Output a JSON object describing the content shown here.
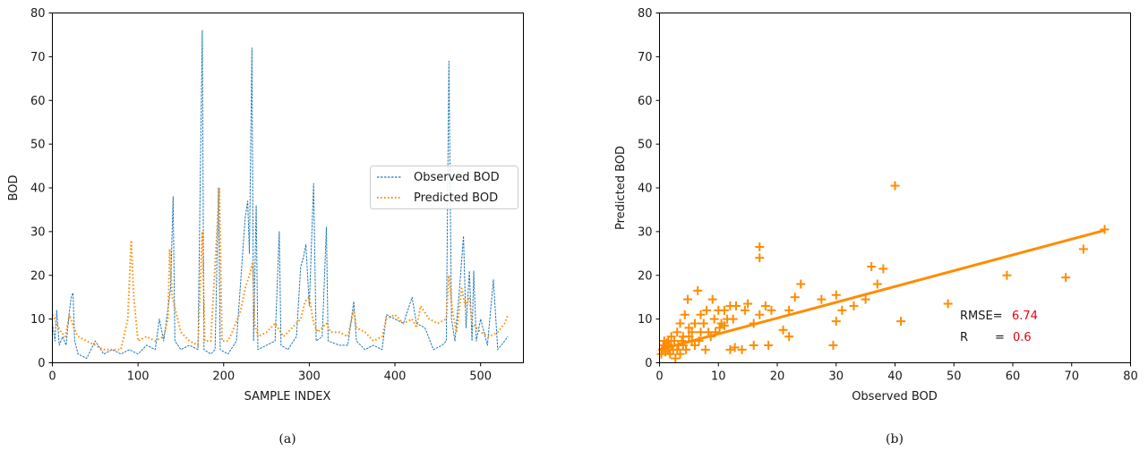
{
  "colors": {
    "observed": "#1f77b4",
    "predicted": "#ff8c00",
    "rmse_value": "#e8000b",
    "axis": "#000000"
  },
  "chart_data": [
    {
      "type": "line",
      "caption": "(a)",
      "xlabel": "SAMPLE INDEX",
      "ylabel": "BOD",
      "xlim": [
        0,
        550
      ],
      "ylim": [
        0,
        80
      ],
      "xticks": [
        "0",
        "100",
        "200",
        "300",
        "400",
        "500"
      ],
      "yticks": [
        "0",
        "10",
        "20",
        "30",
        "40",
        "50",
        "60",
        "70",
        "80"
      ],
      "legend_position": "center-right",
      "series": [
        {
          "name": "Observed BOD",
          "style": "dashed",
          "points": [
            [
              0,
              9
            ],
            [
              3,
              5
            ],
            [
              5,
              12
            ],
            [
              8,
              4
            ],
            [
              12,
              6
            ],
            [
              16,
              4
            ],
            [
              20,
              12
            ],
            [
              22,
              15
            ],
            [
              24,
              16
            ],
            [
              26,
              5
            ],
            [
              30,
              2
            ],
            [
              40,
              1
            ],
            [
              50,
              5
            ],
            [
              60,
              2
            ],
            [
              70,
              3
            ],
            [
              80,
              2
            ],
            [
              90,
              3
            ],
            [
              100,
              2
            ],
            [
              110,
              4
            ],
            [
              120,
              3
            ],
            [
              125,
              10
            ],
            [
              130,
              5
            ],
            [
              138,
              17
            ],
            [
              141,
              38
            ],
            [
              143,
              5
            ],
            [
              150,
              3
            ],
            [
              160,
              4
            ],
            [
              170,
              3
            ],
            [
              175,
              76
            ],
            [
              177,
              3
            ],
            [
              185,
              2
            ],
            [
              190,
              3
            ],
            [
              194,
              40
            ],
            [
              196,
              3
            ],
            [
              205,
              2
            ],
            [
              215,
              5
            ],
            [
              225,
              33
            ],
            [
              228,
              37
            ],
            [
              230,
              25
            ],
            [
              233,
              72
            ],
            [
              235,
              5
            ],
            [
              238,
              36
            ],
            [
              240,
              3
            ],
            [
              250,
              4
            ],
            [
              260,
              5
            ],
            [
              265,
              30
            ],
            [
              267,
              4
            ],
            [
              275,
              3
            ],
            [
              285,
              6
            ],
            [
              290,
              22
            ],
            [
              293,
              24
            ],
            [
              296,
              27
            ],
            [
              300,
              13
            ],
            [
              305,
              41
            ],
            [
              308,
              5
            ],
            [
              315,
              6
            ],
            [
              320,
              31
            ],
            [
              322,
              5
            ],
            [
              335,
              4
            ],
            [
              345,
              4
            ],
            [
              352,
              14
            ],
            [
              355,
              5
            ],
            [
              365,
              3
            ],
            [
              375,
              4
            ],
            [
              385,
              3
            ],
            [
              390,
              11
            ],
            [
              400,
              10
            ],
            [
              410,
              9
            ],
            [
              420,
              15
            ],
            [
              425,
              9
            ],
            [
              435,
              8
            ],
            [
              445,
              3
            ],
            [
              455,
              4
            ],
            [
              460,
              5
            ],
            [
              463,
              69
            ],
            [
              466,
              10
            ],
            [
              470,
              5
            ],
            [
              475,
              16
            ],
            [
              480,
              29
            ],
            [
              483,
              8
            ],
            [
              487,
              21
            ],
            [
              490,
              5
            ],
            [
              492,
              21
            ],
            [
              495,
              5
            ],
            [
              500,
              10
            ],
            [
              508,
              4
            ],
            [
              515,
              19
            ],
            [
              520,
              3
            ],
            [
              528,
              5
            ],
            [
              532,
              6
            ]
          ]
        },
        {
          "name": "Predicted BOD",
          "style": "dotted",
          "points": [
            [
              0,
              11
            ],
            [
              5,
              9
            ],
            [
              10,
              7
            ],
            [
              15,
              6
            ],
            [
              20,
              11
            ],
            [
              25,
              8
            ],
            [
              30,
              6
            ],
            [
              40,
              5
            ],
            [
              50,
              4
            ],
            [
              60,
              3
            ],
            [
              70,
              3
            ],
            [
              80,
              3
            ],
            [
              88,
              10
            ],
            [
              92,
              28
            ],
            [
              95,
              15
            ],
            [
              100,
              5
            ],
            [
              110,
              6
            ],
            [
              120,
              5
            ],
            [
              130,
              6
            ],
            [
              135,
              10
            ],
            [
              137,
              26
            ],
            [
              140,
              15
            ],
            [
              150,
              7
            ],
            [
              160,
              5
            ],
            [
              170,
              4
            ],
            [
              175,
              30
            ],
            [
              178,
              5
            ],
            [
              185,
              5
            ],
            [
              195,
              40
            ],
            [
              198,
              5
            ],
            [
              205,
              5
            ],
            [
              210,
              7
            ],
            [
              220,
              12
            ],
            [
              225,
              17
            ],
            [
              230,
              20
            ],
            [
              234,
              23
            ],
            [
              236,
              9
            ],
            [
              240,
              6
            ],
            [
              250,
              7
            ],
            [
              260,
              9
            ],
            [
              270,
              6
            ],
            [
              280,
              8
            ],
            [
              290,
              10
            ],
            [
              295,
              14
            ],
            [
              300,
              15
            ],
            [
              305,
              9
            ],
            [
              310,
              7
            ],
            [
              320,
              9
            ],
            [
              325,
              7
            ],
            [
              335,
              7
            ],
            [
              345,
              6
            ],
            [
              352,
              12
            ],
            [
              355,
              8
            ],
            [
              365,
              7
            ],
            [
              375,
              5
            ],
            [
              385,
              6
            ],
            [
              390,
              10
            ],
            [
              400,
              11
            ],
            [
              410,
              9
            ],
            [
              420,
              10
            ],
            [
              425,
              8
            ],
            [
              430,
              13
            ],
            [
              440,
              10
            ],
            [
              450,
              9
            ],
            [
              460,
              10
            ],
            [
              463,
              20
            ],
            [
              467,
              12
            ],
            [
              472,
              7
            ],
            [
              478,
              17
            ],
            [
              482,
              13
            ],
            [
              487,
              15
            ],
            [
              490,
              9
            ],
            [
              495,
              8
            ],
            [
              500,
              7
            ],
            [
              510,
              6
            ],
            [
              520,
              7
            ],
            [
              528,
              9
            ],
            [
              532,
              11
            ]
          ]
        }
      ]
    },
    {
      "type": "scatter",
      "caption": "(b)",
      "xlabel": "Observed BOD",
      "ylabel": "Predicted BOD",
      "xlim": [
        0,
        80
      ],
      "ylim": [
        0,
        80
      ],
      "xticks": [
        "0",
        "10",
        "20",
        "30",
        "40",
        "50",
        "60",
        "70",
        "80"
      ],
      "yticks": [
        "0",
        "10",
        "20",
        "30",
        "40",
        "50",
        "60",
        "70",
        "80"
      ],
      "fit_line": [
        [
          0,
          3
        ],
        [
          75.6,
          30.3
        ]
      ],
      "annotations": {
        "rmse_label": "RMSE=",
        "rmse_value": "6.74",
        "r_label": "R",
        "r_eq": "=",
        "r_value": "0.6"
      },
      "points": [
        [
          0.3,
          2
        ],
        [
          0.5,
          3
        ],
        [
          0.7,
          4
        ],
        [
          0.8,
          5
        ],
        [
          1,
          2.5
        ],
        [
          1,
          3.5
        ],
        [
          1.2,
          4.5
        ],
        [
          1.5,
          3
        ],
        [
          1.5,
          5
        ],
        [
          1.8,
          2
        ],
        [
          2,
          4
        ],
        [
          2,
          6
        ],
        [
          2.3,
          3
        ],
        [
          2.5,
          5
        ],
        [
          2.7,
          1
        ],
        [
          3,
          3
        ],
        [
          3,
          7
        ],
        [
          3.2,
          4
        ],
        [
          3.5,
          2
        ],
        [
          3.5,
          9
        ],
        [
          3.8,
          5
        ],
        [
          4,
          6
        ],
        [
          4,
          4
        ],
        [
          4.3,
          11
        ],
        [
          4.5,
          3
        ],
        [
          4.8,
          14.5
        ],
        [
          5,
          6
        ],
        [
          5,
          8
        ],
        [
          5.5,
          7
        ],
        [
          5.5,
          5
        ],
        [
          6,
          9
        ],
        [
          6,
          4
        ],
        [
          6.5,
          16.5
        ],
        [
          6.7,
          5
        ],
        [
          7,
          11
        ],
        [
          7,
          7
        ],
        [
          7.5,
          9
        ],
        [
          7.8,
          3
        ],
        [
          8,
          12
        ],
        [
          8.3,
          7
        ],
        [
          8.7,
          6
        ],
        [
          9,
          14.5
        ],
        [
          9.3,
          10
        ],
        [
          9.5,
          7
        ],
        [
          10,
          12
        ],
        [
          10.2,
          8
        ],
        [
          10.5,
          9
        ],
        [
          11,
          12
        ],
        [
          11,
          8.5
        ],
        [
          11.5,
          10
        ],
        [
          12,
          13
        ],
        [
          12,
          3
        ],
        [
          12.5,
          10
        ],
        [
          12.8,
          3.5
        ],
        [
          13,
          13
        ],
        [
          14,
          3
        ],
        [
          14.5,
          12
        ],
        [
          15,
          13.5
        ],
        [
          16,
          9
        ],
        [
          16,
          4
        ],
        [
          17,
          24
        ],
        [
          17,
          26.5
        ],
        [
          17,
          11
        ],
        [
          18,
          13
        ],
        [
          18.5,
          4
        ],
        [
          19,
          12
        ],
        [
          21,
          7.5
        ],
        [
          22,
          12
        ],
        [
          22,
          6
        ],
        [
          23,
          15
        ],
        [
          24,
          18
        ],
        [
          27.5,
          14.5
        ],
        [
          29.5,
          4
        ],
        [
          30,
          9.5
        ],
        [
          30,
          15.5
        ],
        [
          31,
          12
        ],
        [
          33,
          13
        ],
        [
          35,
          14.5
        ],
        [
          36,
          22
        ],
        [
          37,
          18
        ],
        [
          38,
          21.5
        ],
        [
          40,
          40.5
        ],
        [
          41,
          9.5
        ],
        [
          49,
          13.5
        ],
        [
          59,
          20
        ],
        [
          69,
          19.5
        ],
        [
          72,
          26
        ],
        [
          75.6,
          30.5
        ]
      ]
    }
  ]
}
